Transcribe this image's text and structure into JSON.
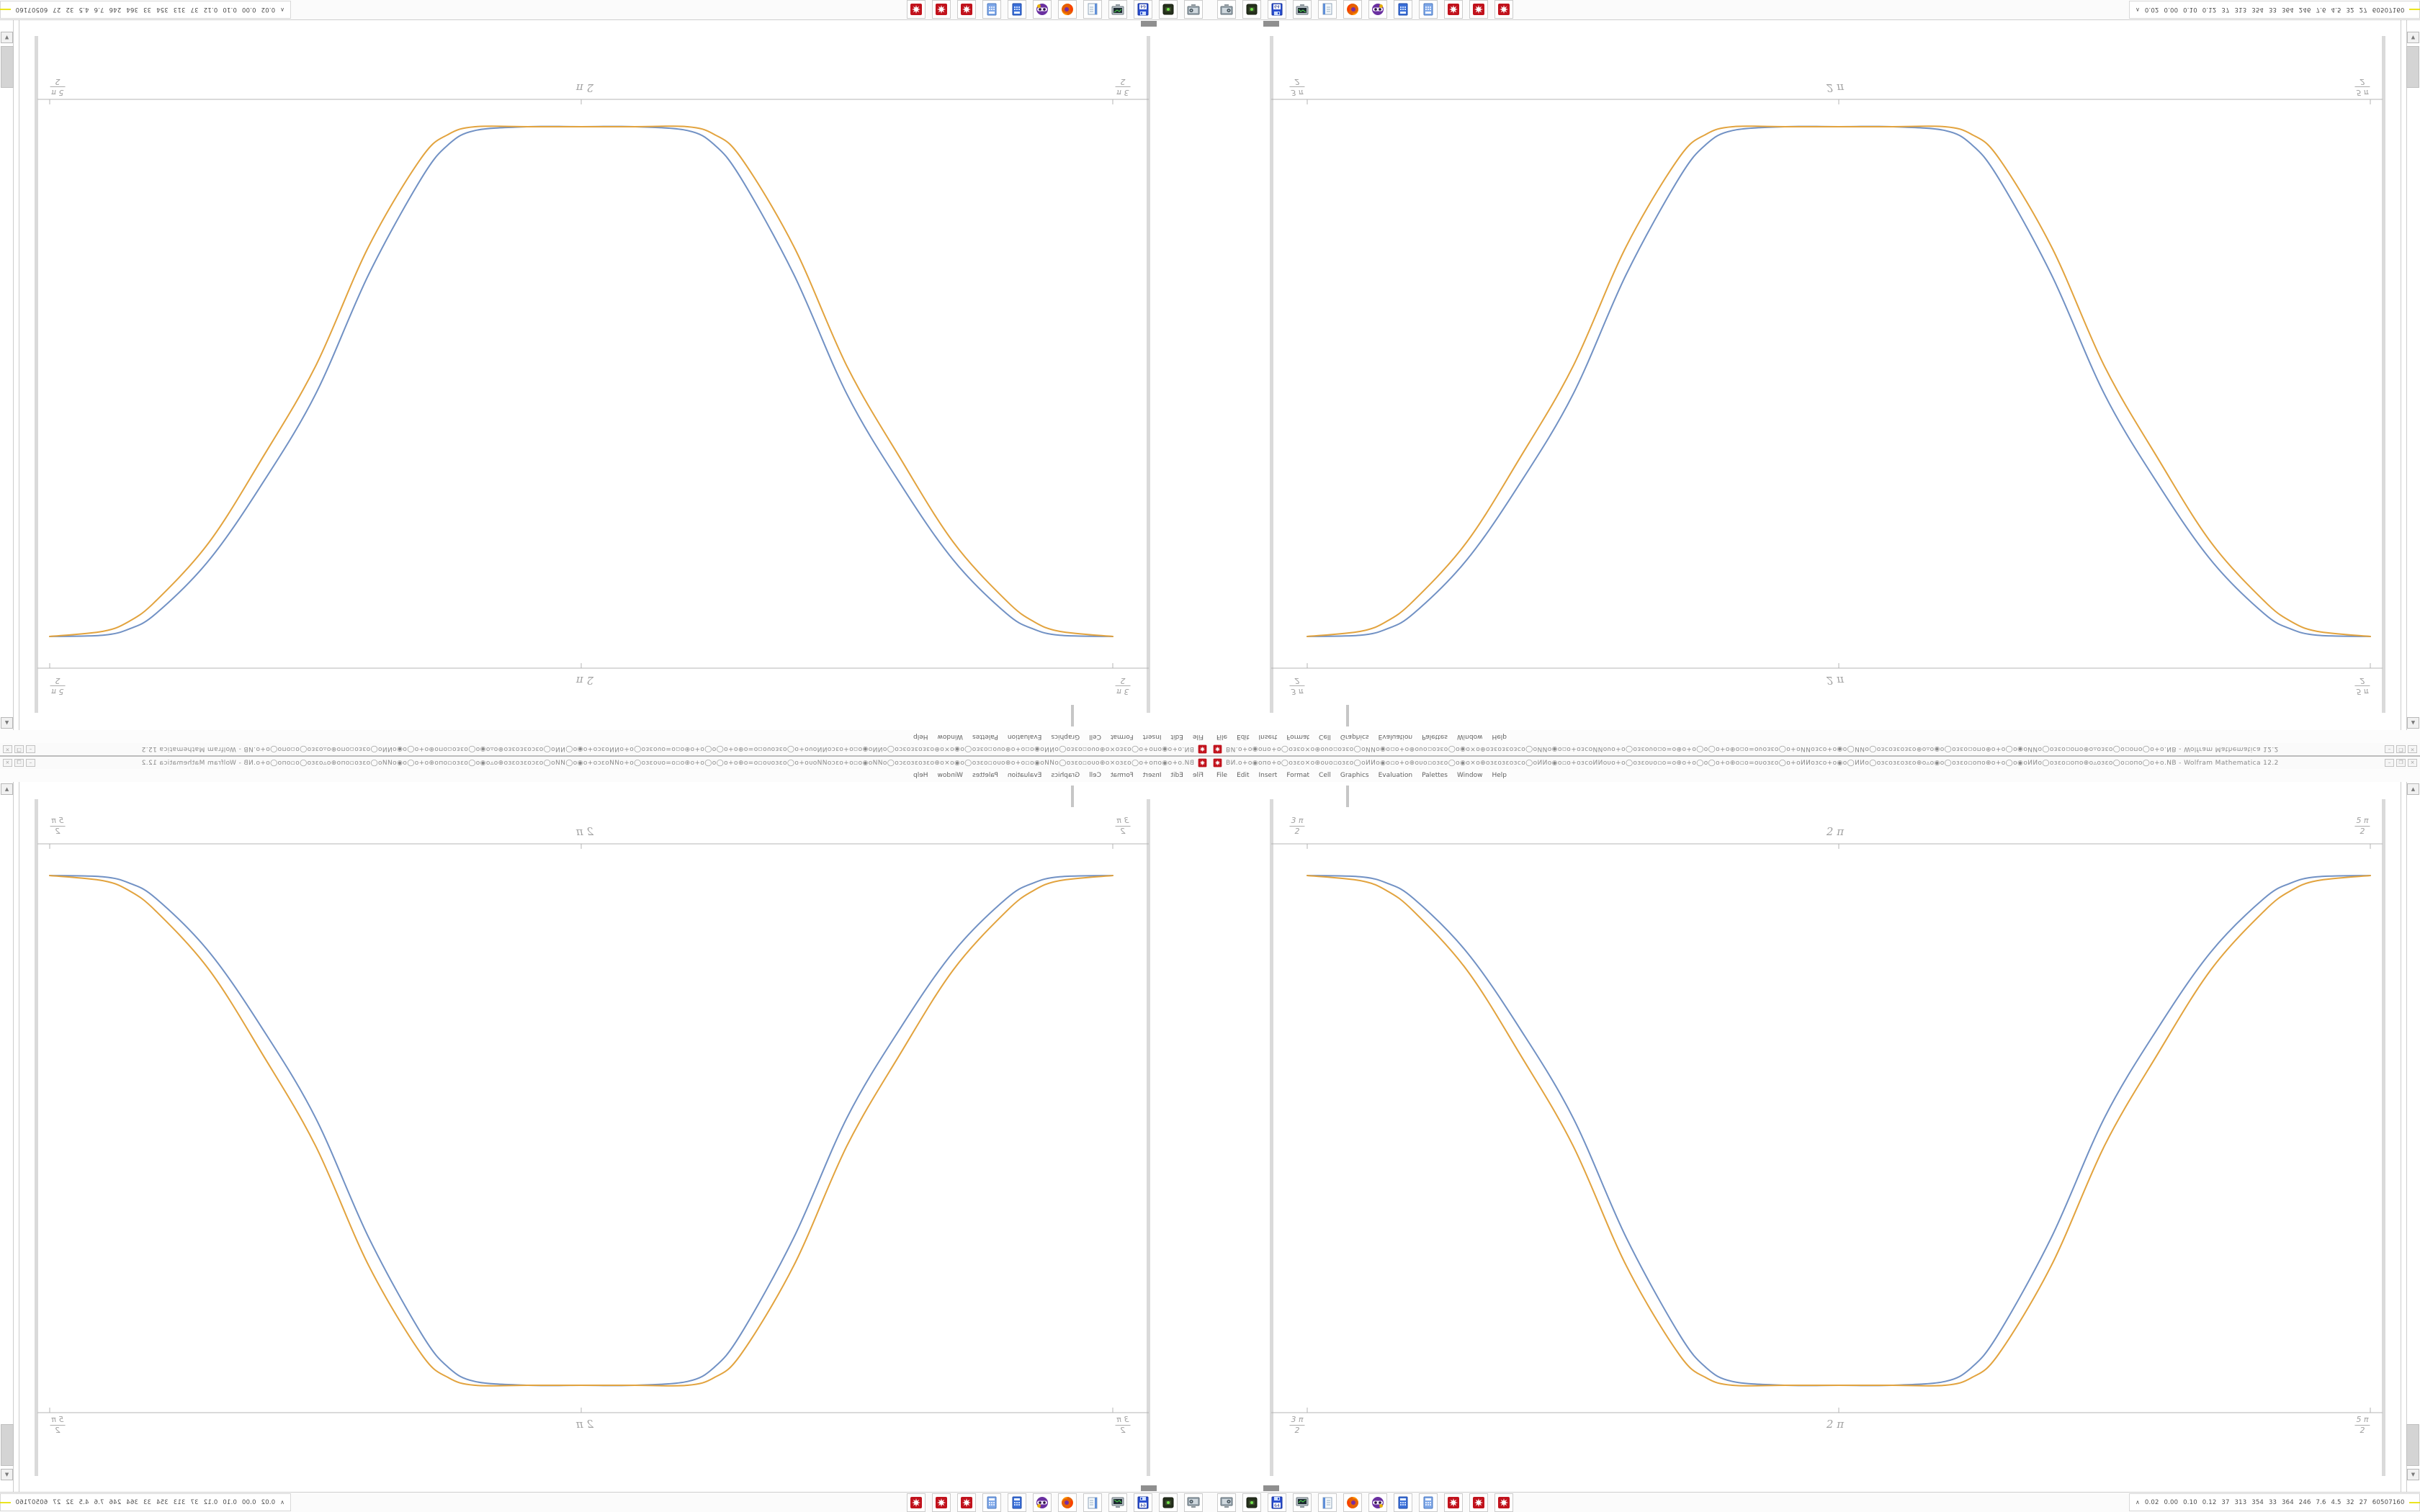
{
  "window": {
    "title": "ВИ.о+о◉опо+о◯озεо×о⊕оυо▫озεо◯оИИо◉о▫о+о⊕оυо▫озεо◯о◉о×о⊕озεозεозсо◯оИИо◉о▫о+озсоИИоυо+о◯озεоυо▫о=о⊕о+о◯о◯о+о⊕о▫о=оυозεо◯о+оИИозсо+о◉о◯ИИо◯озсозεозεо⊕о▵о◉о◯озεо▫опо⊕о+о◯о◉оИИо◯озεо▫опо⊕о▵озεо◯о▫опо◯о+о.NB - Wolfram Mathematica 12.2",
    "controls": {
      "minimize": "–",
      "restore": "❐",
      "close": "×"
    },
    "menu": [
      "File",
      "Edit",
      "Insert",
      "Format",
      "Cell",
      "Graphics",
      "Evaluation",
      "Palettes",
      "Window",
      "Help"
    ]
  },
  "scrollbar": {
    "up": "▲",
    "down": "▼"
  },
  "chart_data": {
    "type": "line",
    "title": "",
    "xlabel": "",
    "ylabel": "",
    "frame": "horizontal axis lines on top and bottom, tick labels on both",
    "grid": false,
    "legend": "none",
    "xlim_pi": [
      1.47,
      2.51
    ],
    "ylim": [
      -1.12,
      1.12
    ],
    "x_ticks": [
      {
        "value_pi": 1.5,
        "num": "3 π",
        "den": "2"
      },
      {
        "value_pi": 2.0,
        "plain": "2 π"
      },
      {
        "value_pi": 2.5,
        "num": "5 π",
        "den": "2"
      }
    ],
    "x_pi": [
      1.5,
      1.55,
      1.575,
      1.6,
      1.65,
      1.7,
      1.75,
      1.8,
      1.85,
      1.875,
      1.9,
      1.95,
      2.0,
      2.05,
      2.1,
      2.125,
      2.15,
      2.2,
      2.25,
      2.3,
      2.35,
      2.4,
      2.425,
      2.45,
      2.5
    ],
    "series": [
      {
        "name": "series-1-blue",
        "color": "#7191c4",
        "y": [
          1,
          0.995,
          0.97,
          0.91,
          0.7,
          0.4,
          0.05,
          -0.42,
          -0.8,
          -0.93,
          -0.985,
          -1,
          -1,
          -1,
          -0.985,
          -0.93,
          -0.8,
          -0.42,
          0.05,
          0.4,
          0.7,
          0.91,
          0.97,
          0.995,
          1
        ]
      },
      {
        "name": "series-2-orange",
        "color": "#e2a33e",
        "y": [
          1,
          0.98,
          0.94,
          0.86,
          0.63,
          0.3,
          -0.06,
          -0.53,
          -0.88,
          -0.97,
          -1,
          -1,
          -1,
          -1,
          -1,
          -0.97,
          -0.88,
          -0.53,
          -0.06,
          0.3,
          0.63,
          0.86,
          0.94,
          0.98,
          1
        ]
      }
    ]
  },
  "taskbar": {
    "launcher_icons": [
      {
        "name": "screenshot-tool"
      },
      {
        "name": "package-manager"
      },
      {
        "name": "floppy-64",
        "label": "64"
      },
      {
        "name": "system-monitor-app"
      },
      {
        "name": "notepad"
      },
      {
        "name": "firefox"
      },
      {
        "name": "goggles-app"
      },
      {
        "name": "calculator-dark"
      },
      {
        "name": "calculator-light"
      },
      {
        "name": "mathematica-1"
      },
      {
        "name": "mathematica-2"
      },
      {
        "name": "mathematica-3"
      }
    ],
    "system_monitor": {
      "chevron": "∧",
      "values_text": "0.02 0.00 0.10 0.12  37  313 354  33  364 246  7.6  4.5  32  27  60507160"
    }
  }
}
